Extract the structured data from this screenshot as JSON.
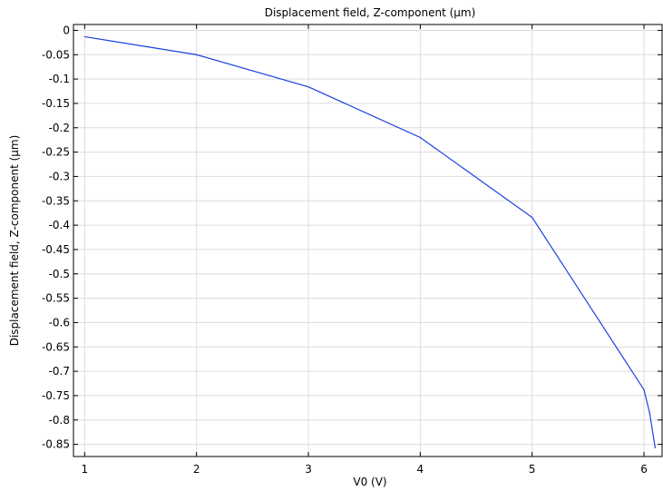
{
  "chart_data": {
    "type": "line",
    "title": "Displacement field, Z-component (µm)",
    "xlabel": "V0 (V)",
    "ylabel": "Displacement field, Z-component (µm)",
    "xlim": [
      0.9,
      6.17
    ],
    "ylim": [
      -0.875,
      0.012
    ],
    "x_ticks": [
      1,
      2,
      3,
      4,
      5,
      6
    ],
    "x_tick_labels": [
      "1",
      "2",
      "3",
      "4",
      "5",
      "6"
    ],
    "y_ticks": [
      0,
      -0.05,
      -0.1,
      -0.15,
      -0.2,
      -0.25,
      -0.3,
      -0.35,
      -0.4,
      -0.45,
      -0.5,
      -0.55,
      -0.6,
      -0.65,
      -0.7,
      -0.75,
      -0.8,
      -0.85
    ],
    "y_tick_labels": [
      "0",
      "-0.05",
      "-0.1",
      "-0.15",
      "-0.2",
      "-0.25",
      "-0.3",
      "-0.35",
      "-0.4",
      "-0.45",
      "-0.5",
      "-0.55",
      "-0.6",
      "-0.65",
      "-0.7",
      "-0.75",
      "-0.8",
      "-0.85"
    ],
    "grid": true,
    "series": [
      {
        "color": "#1a3fe0",
        "x": [
          1,
          2,
          3,
          4,
          5,
          6,
          6.05,
          6.1
        ],
        "y": [
          -0.013,
          -0.05,
          -0.116,
          -0.22,
          -0.384,
          -0.738,
          -0.785,
          -0.857
        ]
      }
    ]
  }
}
